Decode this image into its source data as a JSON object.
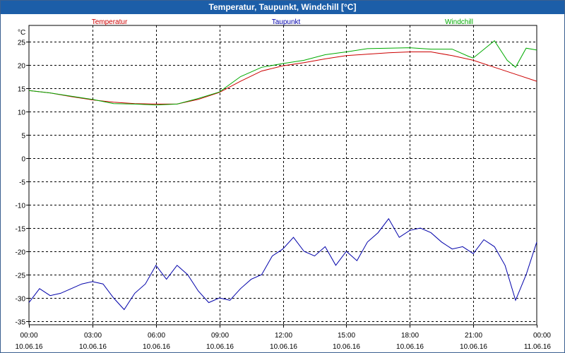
{
  "window": {
    "title": "Temperatur, Taupunkt, Windchill [°C]"
  },
  "chart_data": {
    "type": "line",
    "title": "Temperatur, Taupunkt, Windchill [°C]",
    "ylabel": "°C",
    "xlabel": "",
    "ylim": [
      -36,
      26
    ],
    "xlim": [
      0,
      24
    ],
    "grid": true,
    "legend": [
      {
        "name": "Temperatur",
        "color": "#cc0000"
      },
      {
        "name": "Taupunkt",
        "color": "#0000aa"
      },
      {
        "name": "Windchill",
        "color": "#00aa00"
      }
    ],
    "y_ticks": [
      25,
      20,
      15,
      10,
      5,
      0,
      -5,
      -10,
      -15,
      -20,
      -25,
      -30,
      -35
    ],
    "y_tick_labels": [
      "25",
      "20",
      "15",
      "10",
      "5",
      "0",
      "-5",
      "-10",
      "-15",
      "-20",
      "-25",
      "-30",
      "-35"
    ],
    "x_ticks": [
      {
        "hour": 0,
        "time": "00:00",
        "date": "10.06.16"
      },
      {
        "hour": 3,
        "time": "03:00",
        "date": "10.06.16"
      },
      {
        "hour": 6,
        "time": "06:00",
        "date": "10.06.16"
      },
      {
        "hour": 9,
        "time": "09:00",
        "date": "10.06.16"
      },
      {
        "hour": 12,
        "time": "12:00",
        "date": "10.06.16"
      },
      {
        "hour": 15,
        "time": "15:00",
        "date": "10.06.16"
      },
      {
        "hour": 18,
        "time": "18:00",
        "date": "10.06.16"
      },
      {
        "hour": 21,
        "time": "21:00",
        "date": "10.06.16"
      },
      {
        "hour": 24,
        "time": "00:00",
        "date": "11.06.16"
      }
    ],
    "series": [
      {
        "name": "Temperatur",
        "color": "#cc0000",
        "x": [
          0,
          1,
          2,
          3,
          4,
          5,
          6,
          7,
          8,
          9,
          10,
          11,
          12,
          13,
          14,
          15,
          16,
          17,
          18,
          19,
          20,
          21,
          22,
          23,
          24
        ],
        "values": [
          14.5,
          14.0,
          13.2,
          12.5,
          12.0,
          11.7,
          11.6,
          11.6,
          12.6,
          14.1,
          16.5,
          18.7,
          19.8,
          20.5,
          21.3,
          22.0,
          22.3,
          22.6,
          22.8,
          22.8,
          22.0,
          21.0,
          19.5,
          18.0,
          16.5
        ]
      },
      {
        "name": "Taupunkt",
        "color": "#0000aa",
        "x": [
          0,
          0.5,
          1,
          1.5,
          2,
          2.5,
          3,
          3.5,
          4,
          4.5,
          5,
          5.5,
          6,
          6.5,
          7,
          7.5,
          8,
          8.5,
          9,
          9.5,
          10,
          10.5,
          11,
          11.5,
          12,
          12.5,
          13,
          13.5,
          14,
          14.5,
          15,
          15.5,
          16,
          16.5,
          17,
          17.5,
          18,
          18.5,
          19,
          19.5,
          20,
          20.5,
          21,
          21.5,
          22,
          22.5,
          23,
          23.5,
          24
        ],
        "values": [
          -31,
          -28,
          -29.5,
          -29,
          -28,
          -27,
          -26.5,
          -27,
          -30,
          -32.5,
          -29,
          -27,
          -23,
          -26,
          -23,
          -25,
          -28.5,
          -31,
          -30,
          -30.5,
          -28,
          -26,
          -25,
          -21,
          -19.5,
          -17,
          -20,
          -21,
          -19,
          -23,
          -20,
          -22,
          -18,
          -16,
          -13,
          -17,
          -15.5,
          -15,
          -16,
          -18,
          -19.5,
          -19,
          -20.5,
          -17.5,
          -19,
          -23,
          -30.5,
          -25,
          -18
        ]
      },
      {
        "name": "Windchill",
        "color": "#00aa00",
        "x": [
          0,
          1,
          2,
          3,
          4,
          5,
          6,
          7,
          8,
          9,
          10,
          11,
          12,
          13,
          14,
          15,
          16,
          17,
          18,
          19,
          20,
          20.8,
          21,
          22,
          22.6,
          23,
          23.5,
          24
        ],
        "values": [
          14.5,
          14.0,
          13.3,
          12.6,
          11.7,
          11.6,
          11.4,
          11.6,
          12.8,
          14.2,
          17.5,
          19.5,
          20.3,
          21.0,
          22.2,
          22.8,
          23.5,
          23.6,
          23.7,
          23.4,
          23.4,
          21.8,
          21.5,
          25.2,
          21.0,
          19.5,
          23.6,
          23.2
        ]
      }
    ]
  }
}
